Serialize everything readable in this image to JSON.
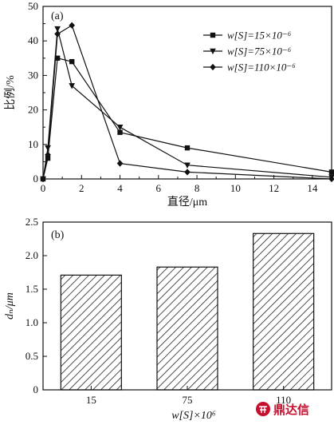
{
  "chart_data": [
    {
      "type": "line",
      "panel_label": "(a)",
      "xlabel": "直径/μm",
      "ylabel": "比例/%",
      "xlim": [
        0,
        15
      ],
      "ylim": [
        0,
        50
      ],
      "xticks": [
        "0",
        "2",
        "4",
        "6",
        "8",
        "10",
        "12",
        "14"
      ],
      "yticks": [
        "0",
        "10",
        "20",
        "30",
        "40",
        "50"
      ],
      "legend_position": "top-right",
      "series": [
        {
          "name": "w[S]=15×10⁻⁶",
          "marker": "square",
          "x": [
            0,
            0.25,
            0.75,
            1.5,
            4,
            7.5,
            15
          ],
          "y": [
            0,
            6,
            35,
            34,
            13.5,
            9,
            2
          ]
        },
        {
          "name": "w[S]=75×10⁻⁶",
          "marker": "triangle-down",
          "x": [
            0,
            0.25,
            0.75,
            1.5,
            4,
            7.5,
            15
          ],
          "y": [
            0,
            9,
            43.5,
            27,
            15,
            4,
            0.5
          ]
        },
        {
          "name": "w[S]=110×10⁻⁶",
          "marker": "diamond",
          "x": [
            0,
            0.25,
            0.75,
            1.5,
            4,
            7.5,
            15
          ],
          "y": [
            0,
            7,
            42,
            44.5,
            4.5,
            2,
            0
          ]
        }
      ]
    },
    {
      "type": "bar",
      "panel_label": "(b)",
      "xlabel": "w[S]×10⁶",
      "ylabel": "dₙ/μm",
      "ylim": [
        0,
        2.5
      ],
      "yticks": [
        "0",
        "0.5",
        "1.0",
        "1.5",
        "2.0",
        "2.5"
      ],
      "categories": [
        "15",
        "75",
        "110"
      ],
      "values": [
        1.71,
        1.83,
        2.33
      ],
      "fill": "diagonal-hatch"
    }
  ],
  "watermark": {
    "text": "鼎达信",
    "color": "#c8102e"
  }
}
